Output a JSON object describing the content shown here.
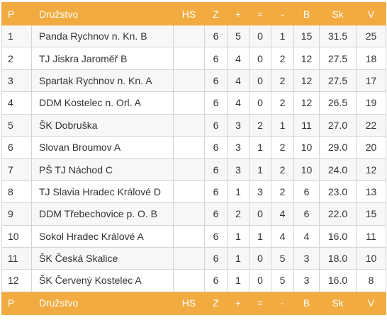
{
  "columns": {
    "rank": "P",
    "team": "Družstvo",
    "hs": "HS",
    "z": "Z",
    "plus": "+",
    "eq": "=",
    "minus": "-",
    "b": "B",
    "sk": "Sk",
    "v": "V"
  },
  "rows": [
    {
      "rank": "1",
      "team": "Panda Rychnov n. Kn. B",
      "hs": "",
      "z": "6",
      "plus": "5",
      "eq": "0",
      "minus": "1",
      "b": "15",
      "sk": "31.5",
      "v": "25"
    },
    {
      "rank": "2",
      "team": "TJ Jiskra Jaroměř B",
      "hs": "",
      "z": "6",
      "plus": "4",
      "eq": "0",
      "minus": "2",
      "b": "12",
      "sk": "27.5",
      "v": "18"
    },
    {
      "rank": "3",
      "team": "Spartak Rychnov n. Kn. A",
      "hs": "",
      "z": "6",
      "plus": "4",
      "eq": "0",
      "minus": "2",
      "b": "12",
      "sk": "27.5",
      "v": "17"
    },
    {
      "rank": "4",
      "team": "DDM Kostelec n. Orl. A",
      "hs": "",
      "z": "6",
      "plus": "4",
      "eq": "0",
      "minus": "2",
      "b": "12",
      "sk": "26.5",
      "v": "19"
    },
    {
      "rank": "5",
      "team": "ŠK Dobruška",
      "hs": "",
      "z": "6",
      "plus": "3",
      "eq": "2",
      "minus": "1",
      "b": "11",
      "sk": "27.0",
      "v": "22"
    },
    {
      "rank": "6",
      "team": "Slovan Broumov A",
      "hs": "",
      "z": "6",
      "plus": "3",
      "eq": "1",
      "minus": "2",
      "b": "10",
      "sk": "29.0",
      "v": "20"
    },
    {
      "rank": "7",
      "team": "PŠ TJ Náchod C",
      "hs": "",
      "z": "6",
      "plus": "3",
      "eq": "1",
      "minus": "2",
      "b": "10",
      "sk": "24.0",
      "v": "12"
    },
    {
      "rank": "8",
      "team": "TJ Slavia Hradec Králové D",
      "hs": "",
      "z": "6",
      "plus": "1",
      "eq": "3",
      "minus": "2",
      "b": "6",
      "sk": "23.0",
      "v": "13"
    },
    {
      "rank": "9",
      "team": "DDM Třebechovice p. O. B",
      "hs": "",
      "z": "6",
      "plus": "2",
      "eq": "0",
      "minus": "4",
      "b": "6",
      "sk": "22.0",
      "v": "15"
    },
    {
      "rank": "10",
      "team": "Sokol Hradec Králové A",
      "hs": "",
      "z": "6",
      "plus": "1",
      "eq": "1",
      "minus": "4",
      "b": "4",
      "sk": "16.0",
      "v": "11"
    },
    {
      "rank": "11",
      "team": "ŠK Česká Skalice",
      "hs": "",
      "z": "6",
      "plus": "1",
      "eq": "0",
      "minus": "5",
      "b": "3",
      "sk": "18.0",
      "v": "10"
    },
    {
      "rank": "12",
      "team": "ŠK Červený Kostelec A",
      "hs": "",
      "z": "6",
      "plus": "1",
      "eq": "0",
      "minus": "5",
      "b": "3",
      "sk": "16.0",
      "v": "8"
    }
  ],
  "colors": {
    "header_bg": "#f1ab40",
    "header_text": "#ffffff",
    "row_alt_bg": "#f7f7f7",
    "row_bg": "#ffffff",
    "border": "#d4d4d4",
    "text": "#333333"
  }
}
